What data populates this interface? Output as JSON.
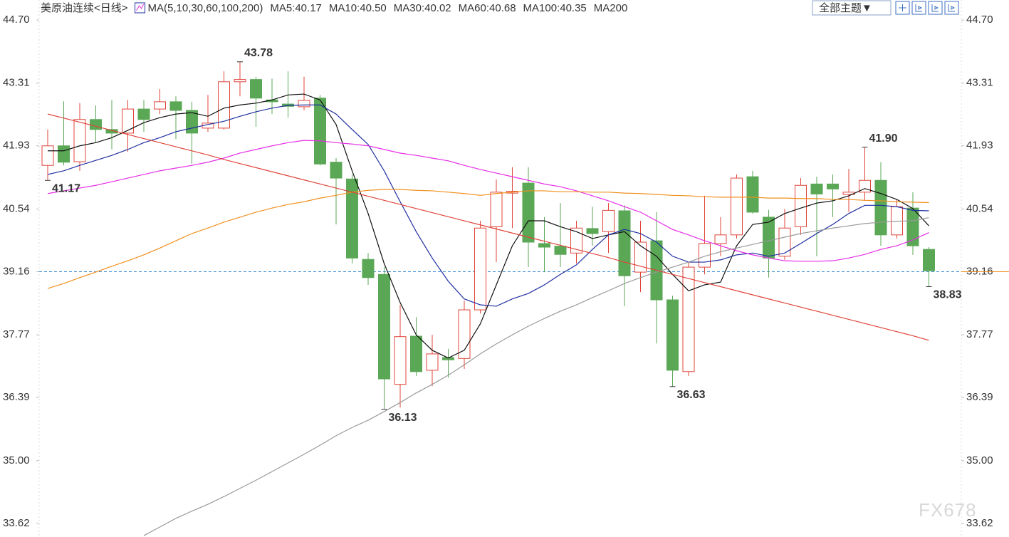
{
  "header": {
    "title": "美原油连续",
    "period": "<日线>",
    "ma_label": "MA(5,10,30,60,100,200)",
    "button": "全部主题▼",
    "watermark": "FX678"
  },
  "chart_data": {
    "type": "candlestick",
    "categories": [
      null,
      null,
      null,
      null,
      null,
      null,
      null,
      null,
      null,
      null,
      null,
      null,
      null,
      null,
      null,
      null,
      null,
      null,
      null,
      null,
      null,
      null,
      null,
      null,
      null,
      null,
      null,
      null,
      null,
      null,
      null,
      null,
      null,
      null,
      null,
      null,
      null,
      null,
      null,
      null,
      null,
      null,
      null,
      null,
      null,
      null,
      null,
      null,
      null,
      null,
      null,
      null,
      null,
      null,
      null,
      null
    ],
    "open": [
      41.5,
      41.93,
      41.58,
      42.51,
      42.29,
      42.21,
      42.74,
      42.74,
      42.9,
      42.71,
      42.32,
      42.32,
      43.34,
      43.39,
      42.94,
      42.85,
      42.79,
      42.98,
      41.57,
      41.2,
      39.43,
      39.1,
      36.68,
      37.74,
      36.99,
      37.27,
      37.25,
      38.32,
      40.15,
      40.89,
      41.11,
      39.78,
      39.72,
      39.57,
      40.11,
      40.04,
      40.5,
      39.15,
      39.84,
      38.54,
      36.96,
      39.26,
      39.78,
      39.97,
      41.25,
      40.36,
      39.5,
      40.15,
      41.09,
      41.09,
      40.86,
      40.91,
      41.17,
      39.97,
      40.56,
      39.65
    ],
    "high": [
      42.29,
      42.91,
      42.87,
      42.82,
      42.94,
      42.94,
      42.94,
      43.18,
      43.02,
      42.9,
      43.05,
      43.57,
      43.78,
      43.45,
      43.41,
      43.57,
      43.45,
      43.05,
      41.66,
      41.3,
      39.57,
      39.26,
      38.43,
      38.16,
      37.77,
      37.46,
      38.52,
      40.28,
      41.19,
      41.46,
      41.46,
      40.36,
      40.67,
      40.28,
      40.59,
      40.67,
      40.62,
      40.28,
      40.47,
      38.63,
      39.37,
      40.83,
      40.36,
      41.3,
      41.38,
      40.52,
      40.54,
      41.22,
      41.25,
      41.3,
      41.42,
      41.9,
      41.57,
      40.75,
      40.91,
      39.7
    ],
    "low": [
      41.17,
      41.5,
      41.38,
      42.0,
      41.85,
      41.8,
      42.24,
      42.63,
      42.08,
      41.53,
      42.24,
      42.29,
      43.02,
      42.35,
      42.63,
      42.55,
      42.71,
      41.5,
      40.2,
      39.34,
      38.87,
      36.13,
      36.17,
      36.86,
      36.64,
      36.83,
      37.02,
      38.24,
      39.37,
      40.12,
      39.26,
      39.15,
      39.26,
      39.34,
      39.73,
      39.57,
      38.4,
      38.71,
      37.58,
      36.63,
      36.86,
      39.1,
      39.5,
      39.89,
      40.44,
      39.03,
      39.42,
      39.97,
      39.5,
      40.36,
      40.47,
      40.72,
      39.73,
      39.89,
      39.53,
      38.83
    ],
    "close": [
      41.93,
      41.57,
      42.51,
      42.29,
      42.21,
      42.74,
      42.51,
      42.9,
      42.71,
      42.21,
      42.43,
      43.34,
      43.39,
      42.98,
      42.9,
      42.8,
      42.93,
      41.53,
      41.22,
      39.46,
      39.03,
      36.8,
      37.73,
      36.96,
      37.35,
      37.22,
      38.32,
      40.12,
      40.91,
      40.93,
      39.81,
      39.7,
      39.54,
      40.12,
      40.0,
      40.51,
      39.07,
      39.81,
      38.54,
      36.99,
      39.26,
      39.78,
      39.97,
      41.22,
      40.47,
      39.46,
      40.12,
      41.06,
      40.87,
      40.98,
      40.91,
      41.17,
      39.97,
      40.59,
      39.73,
      39.18
    ],
    "up_color": "#e0453a",
    "down_color": "#5aa755",
    "series": [
      {
        "name": "MA5:40.17",
        "color": "#111111",
        "values": [
          41.82,
          41.82,
          41.93,
          42.0,
          42.11,
          42.27,
          42.44,
          42.55,
          42.63,
          42.66,
          42.58,
          42.76,
          42.83,
          42.87,
          42.94,
          43.05,
          43.07,
          42.94,
          42.4,
          41.38,
          40.44,
          39.34,
          38.48,
          37.77,
          37.43,
          37.26,
          37.43,
          38.01,
          38.87,
          39.73,
          40.28,
          40.28,
          40.15,
          40.04,
          39.89,
          39.97,
          40.04,
          39.73,
          39.5,
          39.1,
          38.74,
          38.87,
          38.93,
          39.73,
          40.2,
          40.25,
          40.44,
          40.56,
          40.67,
          40.72,
          40.83,
          40.99,
          40.88,
          40.75,
          40.55,
          40.17
        ]
      },
      {
        "name": "MA10:40.50",
        "color": "#1f2fa0",
        "values": [
          41.3,
          41.38,
          41.5,
          41.61,
          41.72,
          41.85,
          42.0,
          42.11,
          42.24,
          42.32,
          42.4,
          42.47,
          42.58,
          42.68,
          42.76,
          42.82,
          42.83,
          42.83,
          42.63,
          42.29,
          41.96,
          41.38,
          40.7,
          40.04,
          39.46,
          38.95,
          38.56,
          38.43,
          38.4,
          38.56,
          38.68,
          38.87,
          39.1,
          39.31,
          39.65,
          39.97,
          40.09,
          40.0,
          39.81,
          39.5,
          39.37,
          39.37,
          39.42,
          39.53,
          39.57,
          39.5,
          39.57,
          39.78,
          40.0,
          40.2,
          40.44,
          40.62,
          40.62,
          40.59,
          40.51,
          40.5
        ]
      },
      {
        "name": "MA30:40.02",
        "color": "#e62ee6",
        "values": [
          40.88,
          40.94,
          41.0,
          41.06,
          41.14,
          41.22,
          41.3,
          41.38,
          41.44,
          41.5,
          41.57,
          41.66,
          41.77,
          41.85,
          41.93,
          42.0,
          42.05,
          42.04,
          42.0,
          41.97,
          41.93,
          41.85,
          41.77,
          41.72,
          41.66,
          41.6,
          41.5,
          41.41,
          41.33,
          41.25,
          41.17,
          41.09,
          41.03,
          40.94,
          40.83,
          40.72,
          40.59,
          40.47,
          40.28,
          40.09,
          39.97,
          39.84,
          39.73,
          39.62,
          39.53,
          39.46,
          39.4,
          39.39,
          39.39,
          39.4,
          39.46,
          39.54,
          39.65,
          39.73,
          39.86,
          40.02
        ]
      },
      {
        "name": "MA60:40.68",
        "color": "#f0901e",
        "values": [
          38.79,
          38.9,
          39.03,
          39.15,
          39.28,
          39.4,
          39.53,
          39.68,
          39.84,
          40.0,
          40.12,
          40.25,
          40.36,
          40.47,
          40.56,
          40.64,
          40.7,
          40.78,
          40.84,
          40.91,
          40.95,
          40.97,
          40.97,
          40.95,
          40.94,
          40.91,
          40.88,
          40.84,
          40.88,
          40.91,
          40.94,
          40.94,
          40.92,
          40.92,
          40.91,
          40.91,
          40.89,
          40.88,
          40.86,
          40.84,
          40.83,
          40.81,
          40.8,
          40.8,
          40.8,
          40.78,
          40.78,
          40.77,
          40.77,
          40.75,
          40.75,
          40.73,
          40.72,
          40.7,
          40.69,
          40.68
        ]
      },
      {
        "name": "MA100:40.35",
        "color": "#9a9a9a",
        "values": [
          null,
          null,
          null,
          null,
          null,
          null,
          33.35,
          33.54,
          33.73,
          33.89,
          34.04,
          34.21,
          34.39,
          34.57,
          34.76,
          34.95,
          35.14,
          35.34,
          35.55,
          35.73,
          35.89,
          36.08,
          36.28,
          36.49,
          36.68,
          36.88,
          37.11,
          37.35,
          37.57,
          37.77,
          37.96,
          38.13,
          38.29,
          38.43,
          38.59,
          38.74,
          38.9,
          39.03,
          39.15,
          39.26,
          39.37,
          39.5,
          39.6,
          39.68,
          39.76,
          39.84,
          39.92,
          40.0,
          40.06,
          40.12,
          40.17,
          40.22,
          40.25,
          40.27,
          40.28,
          40.35
        ]
      },
      {
        "name": "MA200",
        "color": "#e0453a",
        "values": [
          42.63,
          42.54,
          42.45,
          42.36,
          42.27,
          42.18,
          42.09,
          42.0,
          41.91,
          41.82,
          41.73,
          41.63,
          41.54,
          41.45,
          41.36,
          41.27,
          41.18,
          41.09,
          41.0,
          40.91,
          40.82,
          40.73,
          40.64,
          40.55,
          40.46,
          40.37,
          40.28,
          40.19,
          40.1,
          40.01,
          39.92,
          39.83,
          39.74,
          39.65,
          39.56,
          39.47,
          39.37,
          39.28,
          39.19,
          39.1,
          39.01,
          38.92,
          38.83,
          38.74,
          38.65,
          38.56,
          38.47,
          38.38,
          38.29,
          38.2,
          38.11,
          38.02,
          37.93,
          37.84,
          37.75,
          37.65
        ]
      }
    ],
    "annotations": [
      {
        "label": "43.78",
        "value": 43.78,
        "color": "#e0453a"
      },
      {
        "label": "41.17",
        "value": 41.17,
        "color": "#5aa755"
      },
      {
        "label": "36.13",
        "value": 36.13,
        "color": "#5aa755"
      },
      {
        "label": "36.63",
        "value": 36.63,
        "color": "#5aa755"
      },
      {
        "label": "41.90",
        "value": 41.9,
        "color": "#e0453a"
      },
      {
        "label": "38.83",
        "value": 38.83,
        "color": "#5aa755"
      }
    ],
    "current_price": 39.16,
    "current_color": "#3d8fd6",
    "ylim": [
      33.32,
      45.14
    ],
    "yticks": [
      {
        "value": 44.7,
        "label": "44.70"
      },
      43.31,
      41.93,
      40.54,
      39.16,
      37.77,
      36.39,
      {
        "value": 35.0,
        "label": "35.00"
      },
      33.62
    ]
  }
}
